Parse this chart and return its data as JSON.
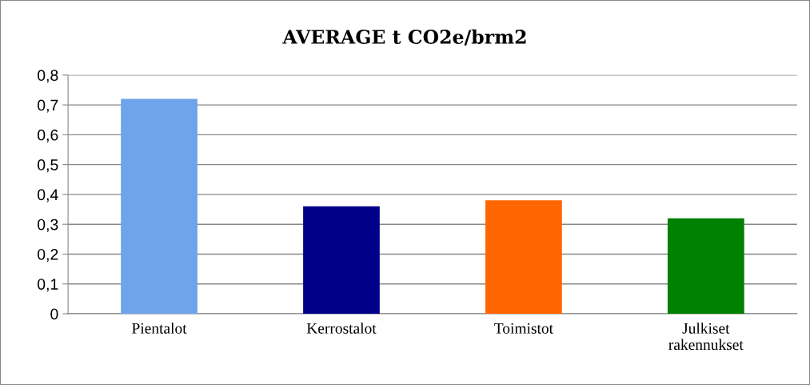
{
  "chart_data": {
    "type": "bar",
    "title": "AVERAGE t CO2e/brm2",
    "categories": [
      "Pientalot",
      "Kerrostalot",
      "Toimistot",
      "Julkiset\nrakennukset"
    ],
    "values": [
      0.72,
      0.36,
      0.38,
      0.32
    ],
    "colors": [
      "#6fa3ea",
      "#00008b",
      "#ff6600",
      "#007f00"
    ],
    "ylim": [
      0,
      0.8
    ],
    "yticks": [
      0,
      {
        "value": 0.1,
        "label": "0,1"
      },
      {
        "value": 0.2,
        "label": "0,2"
      },
      {
        "value": 0.3,
        "label": "0,3"
      },
      {
        "value": 0.4,
        "label": "0,4"
      },
      {
        "value": 0.5,
        "label": "0,5"
      },
      {
        "value": 0.6,
        "label": "0,6"
      },
      {
        "value": 0.7,
        "label": "0,7"
      },
      {
        "value": 0.8,
        "label": "0,8"
      }
    ],
    "grid": "y"
  }
}
